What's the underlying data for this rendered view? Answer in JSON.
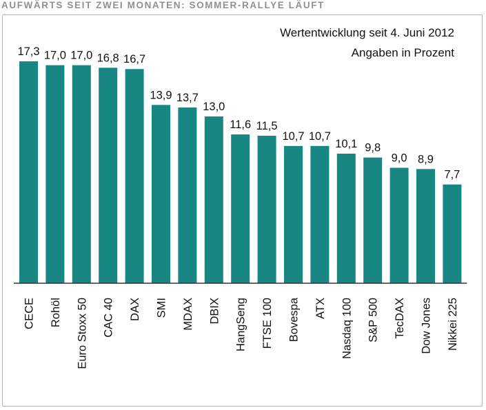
{
  "page": {
    "headline": "AUFWÄRTS SEIT ZWEI MONATEN: SOMMER-RALLYE LÄUFT"
  },
  "chart_data": {
    "type": "bar",
    "title": "",
    "subtitle": [
      "Wertentwicklung seit 4. Juni 2012",
      "Angaben in Prozent"
    ],
    "xlabel": "",
    "ylabel": "",
    "categories": [
      "CECE",
      "Rohöl",
      "Euro Stoxx 50",
      "CAC 40",
      "DAX",
      "SMI",
      "MDAX",
      "DBIX",
      "HangSeng",
      "FTSE 100",
      "Bovespa",
      "ATX",
      "Nasdaq 100",
      "S&P 500",
      "TecDAX",
      "Dow Jones",
      "Nikkei 225"
    ],
    "values": [
      17.3,
      17.0,
      17.0,
      16.8,
      16.7,
      13.9,
      13.7,
      13.0,
      11.6,
      11.5,
      10.7,
      10.7,
      10.1,
      9.8,
      9.0,
      8.9,
      7.7
    ],
    "value_labels": [
      "17,3",
      "17,0",
      "17,0",
      "16,8",
      "16,7",
      "13,9",
      "13,7",
      "13,0",
      "11,6",
      "11,5",
      "10,7",
      "10,7",
      "10,1",
      "9,8",
      "9,0",
      "8,9",
      "7,7"
    ],
    "ylim": [
      0,
      17.3
    ],
    "grid": false,
    "legend": "none",
    "bar_color": "#188783",
    "axis_color": "#333333"
  }
}
